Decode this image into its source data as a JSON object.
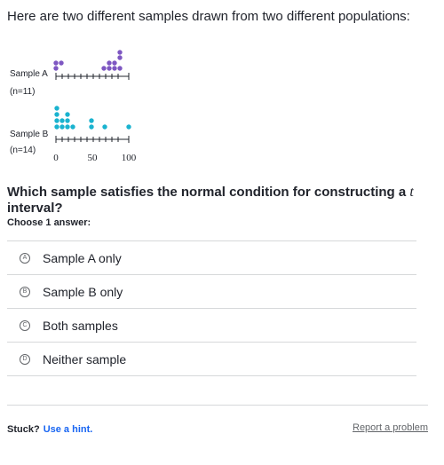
{
  "question": "Here are two different samples drawn from two different populations:",
  "plot": {
    "sample_a_label": "Sample A",
    "sample_a_n": "(n=11)",
    "sample_b_label": "Sample B",
    "sample_b_n": "(n=14)",
    "axis_ticks": [
      "0",
      "50",
      "100"
    ],
    "sample_a_color": "#7e57c2",
    "sample_b_color": "#1ab3cf"
  },
  "prompt": {
    "before": "Which sample satisfies the normal condition for constructing a",
    "var": "t",
    "after": "interval?"
  },
  "choose_label": "Choose 1 answer:",
  "choices": [
    {
      "letter": "A",
      "text": "Sample A only"
    },
    {
      "letter": "B",
      "text": "Sample B only"
    },
    {
      "letter": "C",
      "text": "Both samples"
    },
    {
      "letter": "D",
      "text": "Neither sample"
    }
  ],
  "footer": {
    "stuck": "Stuck?",
    "hint": "Use a hint.",
    "report": "Report a problem"
  }
}
